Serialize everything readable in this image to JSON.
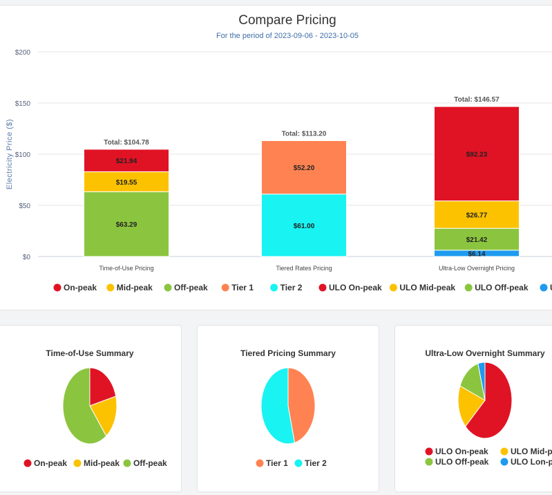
{
  "colors": {
    "on_peak": "#e01325",
    "mid_peak": "#fcc200",
    "off_peak": "#8bc53f",
    "tier1": "#ff8352",
    "tier2": "#19f3f2",
    "ulo_on_peak": "#e01325",
    "ulo_mid_peak": "#fcc200",
    "ulo_off_peak": "#8bc53f",
    "ulo_lon_peak": "#1e9bef"
  },
  "chart_data": [
    {
      "type": "bar",
      "stacked": true,
      "title": "Compare Pricing",
      "subtitle": "For the period of 2023-09-06 - 2023-10-05",
      "ylabel": "Electricity Price ($)",
      "ylim": [
        0,
        200
      ],
      "yticks": [
        0,
        50,
        100,
        150,
        200
      ],
      "ytick_labels": [
        "$0",
        "$50",
        "$100",
        "$150",
        "$200"
      ],
      "grid": true,
      "legend_position": "bottom",
      "categories": [
        "Time-of-Use Pricing",
        "Tiered Rates Pricing",
        "Ultra-Low Overnight Pricing"
      ],
      "totals": [
        "Total: $104.78",
        "Total: $113.20",
        "Total: $146.57"
      ],
      "series": [
        {
          "name": "On-peak",
          "color_key": "on_peak",
          "values": [
            21.94,
            0,
            0
          ]
        },
        {
          "name": "Mid-peak",
          "color_key": "mid_peak",
          "values": [
            19.55,
            0,
            0
          ]
        },
        {
          "name": "Off-peak",
          "color_key": "off_peak",
          "values": [
            63.29,
            0,
            0
          ]
        },
        {
          "name": "Tier 1",
          "color_key": "tier1",
          "values": [
            0,
            52.2,
            0
          ]
        },
        {
          "name": "Tier 2",
          "color_key": "tier2",
          "values": [
            0,
            61.0,
            0
          ]
        },
        {
          "name": "ULO On-peak",
          "color_key": "ulo_on_peak",
          "values": [
            0,
            0,
            92.23
          ]
        },
        {
          "name": "ULO Mid-peak",
          "color_key": "ulo_mid_peak",
          "values": [
            0,
            0,
            26.77
          ]
        },
        {
          "name": "ULO Off-peak",
          "color_key": "ulo_off_peak",
          "values": [
            0,
            0,
            21.42
          ]
        },
        {
          "name": "ULO Lon-peak",
          "color_key": "ulo_lon_peak",
          "values": [
            0,
            0,
            6.14
          ]
        }
      ],
      "stack_order": [
        [
          "Off-peak",
          "Mid-peak",
          "On-peak"
        ],
        [
          "Tier 2",
          "Tier 1"
        ],
        [
          "ULO Lon-peak",
          "ULO Off-peak",
          "ULO Mid-peak",
          "ULO On-peak"
        ]
      ],
      "data_labels": {
        "On-peak": "$21.94",
        "Mid-peak": "$19.55",
        "Off-peak": "$63.29",
        "Tier 1": "$52.20",
        "Tier 2": "$61.00",
        "ULO On-peak": "$92.23",
        "ULO Mid-peak": "$26.77",
        "ULO Off-peak": "$21.42",
        "ULO Lon-peak": "$6.14"
      }
    },
    {
      "type": "pie",
      "title": "Time-of-Use Summary",
      "legend_position": "bottom",
      "slices": [
        {
          "name": "On-peak",
          "value": 21.94,
          "color_key": "on_peak"
        },
        {
          "name": "Mid-peak",
          "value": 19.55,
          "color_key": "mid_peak"
        },
        {
          "name": "Off-peak",
          "value": 63.29,
          "color_key": "off_peak"
        }
      ]
    },
    {
      "type": "pie",
      "title": "Tiered Pricing Summary",
      "legend_position": "bottom",
      "slices": [
        {
          "name": "Tier 1",
          "value": 52.2,
          "color_key": "tier1"
        },
        {
          "name": "Tier 2",
          "value": 61.0,
          "color_key": "tier2"
        }
      ]
    },
    {
      "type": "pie",
      "title": "Ultra-Low Overnight Summary",
      "legend_position": "bottom",
      "slices": [
        {
          "name": "ULO On-peak",
          "value": 92.23,
          "color_key": "ulo_on_peak"
        },
        {
          "name": "ULO Mid-peak",
          "value": 26.77,
          "color_key": "ulo_mid_peak"
        },
        {
          "name": "ULO Off-peak",
          "value": 21.42,
          "color_key": "ulo_off_peak"
        },
        {
          "name": "ULO Lon-peak",
          "value": 6.14,
          "color_key": "ulo_lon_peak"
        }
      ]
    }
  ]
}
